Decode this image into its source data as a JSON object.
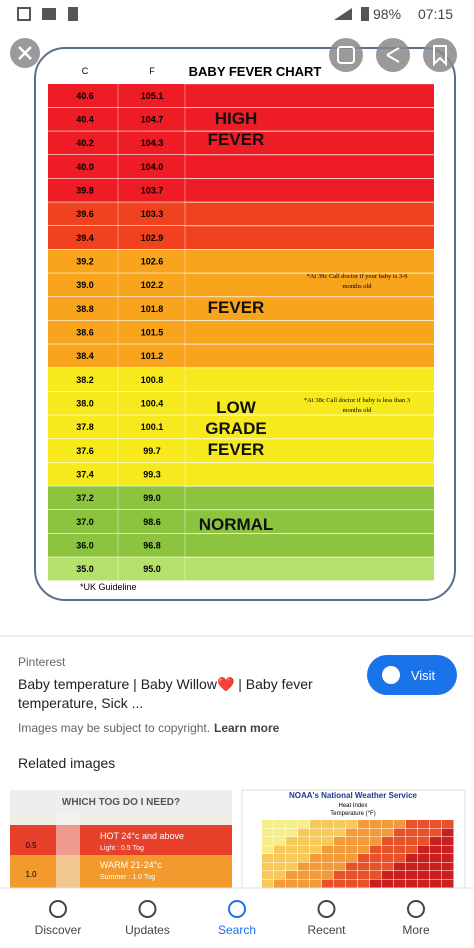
{
  "status": {
    "battery": "98%",
    "time": "07:15"
  },
  "chart_image": {
    "col_c": "C",
    "col_f": "F",
    "title": "BABY FEVER CHART",
    "rows": [
      {
        "c": "40.6",
        "f": "105.1",
        "color": "#ee1c24"
      },
      {
        "c": "40.4",
        "f": "104.7",
        "color": "#ee1c24"
      },
      {
        "c": "40.2",
        "f": "104.3",
        "color": "#ee1c24"
      },
      {
        "c": "40.0",
        "f": "104.0",
        "color": "#ee1c24"
      },
      {
        "c": "39.8",
        "f": "103.7",
        "color": "#ee1c24"
      },
      {
        "c": "39.6",
        "f": "103.3",
        "color": "#f0421e"
      },
      {
        "c": "39.4",
        "f": "102.9",
        "color": "#f0421e"
      },
      {
        "c": "39.2",
        "f": "102.6",
        "color": "#f8a41c"
      },
      {
        "c": "39.0",
        "f": "102.2",
        "color": "#f8a41c"
      },
      {
        "c": "38.8",
        "f": "101.8",
        "color": "#f8a41c"
      },
      {
        "c": "38.6",
        "f": "101.5",
        "color": "#f8a41c"
      },
      {
        "c": "38.4",
        "f": "101.2",
        "color": "#f8a41c"
      },
      {
        "c": "38.2",
        "f": "100.8",
        "color": "#f6ea1e"
      },
      {
        "c": "38.0",
        "f": "100.4",
        "color": "#f6ea1e"
      },
      {
        "c": "37.8",
        "f": "100.1",
        "color": "#f6ea1e"
      },
      {
        "c": "37.6",
        "f": "99.7",
        "color": "#f6ea1e"
      },
      {
        "c": "37.4",
        "f": "99.3",
        "color": "#f6ea1e"
      },
      {
        "c": "37.2",
        "f": "99.0",
        "color": "#8cc43f"
      },
      {
        "c": "37.0",
        "f": "98.6",
        "color": "#8cc43f"
      },
      {
        "c": "36.0",
        "f": "96.8",
        "color": "#8cc43f"
      },
      {
        "c": "35.0",
        "f": "95.0",
        "color": "#b6e06c"
      }
    ],
    "zones": [
      {
        "lines": [
          "HIGH",
          "FEVER"
        ]
      },
      {
        "lines": [
          "FEVER"
        ]
      },
      {
        "lines": [
          "LOW",
          "GRADE",
          "FEVER"
        ]
      },
      {
        "lines": [
          "NORMAL"
        ]
      }
    ],
    "notes": [
      [
        "*At 39c Call doctor if your baby is 3-6",
        "months old"
      ],
      [
        "*At 38c Call doctor if baby is less than 3",
        "months old"
      ]
    ],
    "footnote": "*UK Guideline"
  },
  "source": {
    "site": "Pinterest",
    "title_line1": "Baby temperature | Baby Willow❤️ | Baby fever",
    "title_line2": "temperature, Sick ...",
    "copyright": "Images may be subject to copyright.",
    "learn_more": "Learn more",
    "visit": "Visit"
  },
  "related": {
    "heading": "Related images",
    "left": {
      "title": "WHICH TOG DO I NEED?",
      "hot": "HOT 24°c and above",
      "hot_sub": "Light : 0.5 Tog",
      "warm": "WARM 21-24°c",
      "warm_sub": "Summer : 1.0 Tog",
      "tog1": "0.5",
      "tog2": "1.0"
    },
    "right": {
      "title": "NOAA's National Weather Service",
      "sub": "Heat Index",
      "axis": "Temperature (°F)"
    }
  },
  "nav": [
    "Discover",
    "Updates",
    "Search",
    "Recent",
    "More"
  ]
}
